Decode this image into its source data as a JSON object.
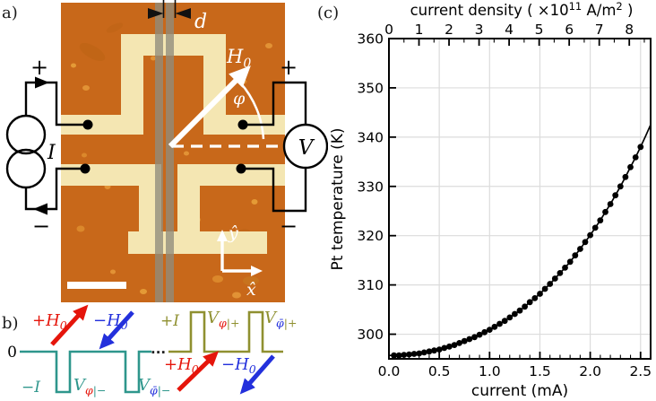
{
  "panels": {
    "a": {
      "label": "a)",
      "gap_label": "d",
      "field_label": {
        "main": "H",
        "sub": "0"
      },
      "angle_label": "φ",
      "axis_y_label": "ŷ",
      "axis_x_label": "x̂",
      "current_source_label": "I",
      "voltmeter_label": "V",
      "plus": "+",
      "minus": "−",
      "colors": {
        "background": "#C8681A",
        "structure": "#F4E6B2",
        "pt_strip": "#8F8C7C",
        "overlay": "#FFFFFF",
        "wire": "#000000"
      }
    },
    "b": {
      "label": "b)",
      "zero": "0",
      "minus_I": "−I",
      "plus_I": "+I",
      "dots": "...",
      "plus_H": {
        "pre": "+H",
        "sub": "0"
      },
      "minus_H": {
        "pre": "−H",
        "sub": "0"
      },
      "v_neg_1": {
        "v": "V",
        "sub": "φ",
        "suffix": "|−"
      },
      "v_neg_2": {
        "v": "V",
        "sub": "φ̄",
        "suffix": "|−"
      },
      "v_pos_1": {
        "v": "V",
        "sub": "φ",
        "suffix": "|+"
      },
      "v_pos_2": {
        "v": "V",
        "sub": "φ̄",
        "suffix": "|+"
      },
      "colors": {
        "teal": "#2E968C",
        "olive": "#8F9030",
        "red": "#E5150B",
        "blue": "#2330DC"
      }
    },
    "c": {
      "label": "(c)"
    }
  },
  "chart_data": {
    "type": "scatter",
    "title": "",
    "xlabel": "current (mA)",
    "ylabel": "Pt temperature (K)",
    "top_axis_label_parts": {
      "pre": "current density ( ×10",
      "sup1": "11",
      "mid": " A/m",
      "sup2": "2",
      "post": " )"
    },
    "xlim": [
      0,
      2.6
    ],
    "ylim": [
      295,
      360
    ],
    "x_major_ticks": [
      0,
      0.5,
      1.0,
      1.5,
      2.0,
      2.5
    ],
    "x_major_labels": [
      "0.0",
      "0.5",
      "1.0",
      "1.5",
      "2.0",
      "2.5"
    ],
    "x_minor_step": 0.1,
    "y_major_ticks": [
      300,
      310,
      320,
      330,
      340,
      350,
      360
    ],
    "top_axis_ticks": [
      0,
      1,
      2,
      3,
      4,
      5,
      6,
      7,
      8
    ],
    "top_axis_minor_step": 0.5,
    "current_density_per_mA": 3.35,
    "grid": true,
    "line_color": "#000000",
    "grid_color": "#DCDCDC",
    "x": [
      0.05,
      0.1,
      0.15,
      0.2,
      0.25,
      0.3,
      0.35,
      0.4,
      0.45,
      0.5,
      0.55,
      0.6,
      0.65,
      0.7,
      0.75,
      0.8,
      0.85,
      0.9,
      0.95,
      1.0,
      1.05,
      1.1,
      1.15,
      1.2,
      1.25,
      1.3,
      1.35,
      1.4,
      1.45,
      1.5,
      1.55,
      1.6,
      1.65,
      1.7,
      1.75,
      1.8,
      1.85,
      1.9,
      1.95,
      2.0,
      2.05,
      2.1,
      2.15,
      2.2,
      2.25,
      2.3,
      2.35,
      2.4,
      2.45,
      2.5
    ],
    "y": [
      295.7,
      295.7,
      295.8,
      295.9,
      296.0,
      296.1,
      296.3,
      296.5,
      296.7,
      296.9,
      297.2,
      297.5,
      297.8,
      298.2,
      298.6,
      299.0,
      299.4,
      299.9,
      300.4,
      300.9,
      301.5,
      302.1,
      302.7,
      303.4,
      304.1,
      304.8,
      305.6,
      306.5,
      307.3,
      308.2,
      309.2,
      310.2,
      311.3,
      312.4,
      313.5,
      314.7,
      316.0,
      317.3,
      318.7,
      320.1,
      321.6,
      323.1,
      324.8,
      326.4,
      328.2,
      330.0,
      331.9,
      333.9,
      335.9,
      338.0
    ],
    "line_start": {
      "x": 0.0,
      "y": 295.7
    },
    "line_extension": {
      "x": [
        2.55,
        2.6
      ],
      "y": [
        340.2,
        342.5
      ]
    }
  }
}
